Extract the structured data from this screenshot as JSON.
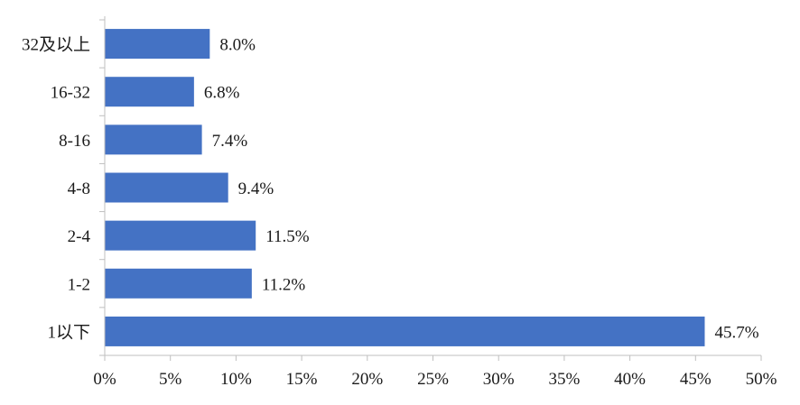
{
  "chart_data": {
    "type": "bar",
    "orientation": "horizontal",
    "categories": [
      "32及以上",
      "16-32",
      "8-16",
      "4-8",
      "2-4",
      "1-2",
      "1以下"
    ],
    "values": [
      8.0,
      6.8,
      7.4,
      9.4,
      11.5,
      11.2,
      45.7
    ],
    "data_labels": [
      "8.0%",
      "6.8%",
      "7.4%",
      "9.4%",
      "11.5%",
      "11.2%",
      "45.7%"
    ],
    "xlim": [
      0,
      50
    ],
    "x_ticks": [
      0,
      5,
      10,
      15,
      20,
      25,
      30,
      35,
      40,
      45,
      50
    ],
    "x_tick_labels": [
      "0%",
      "5%",
      "10%",
      "15%",
      "20%",
      "25%",
      "30%",
      "35%",
      "40%",
      "45%",
      "50%"
    ],
    "bar_color": "#4472C4",
    "axis_color": "#BFBFBF",
    "grid": false,
    "legend": "none",
    "title": "",
    "xlabel": "",
    "ylabel": ""
  }
}
